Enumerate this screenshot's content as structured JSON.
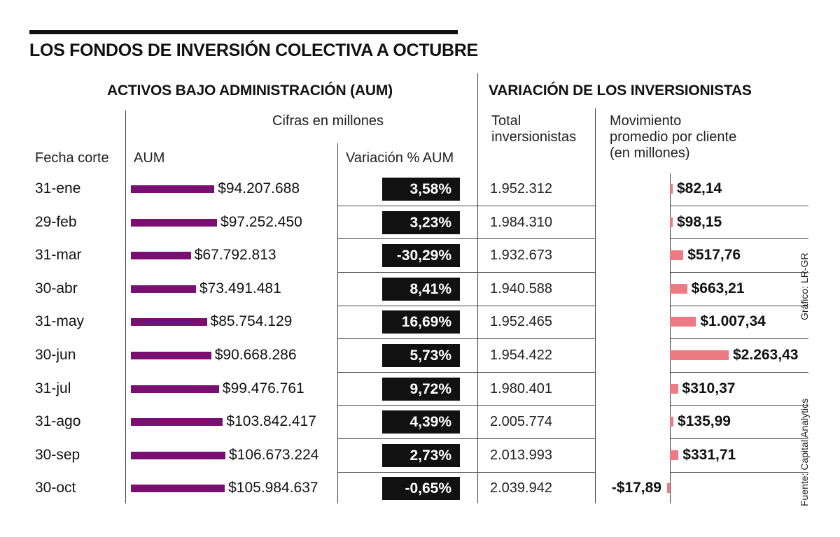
{
  "title": "LOS FONDOS DE INVERSIÓN COLECTIVA A OCTUBRE",
  "section_aum": "ACTIVOS BAJO ADMINISTRACIÓN (AUM)",
  "section_inv": "VARIACIÓN DE LOS INVERSIONISTAS",
  "headers": {
    "units": "Cifras en millones",
    "date": "Fecha corte",
    "aum": "AUM",
    "variation": "Variación % AUM",
    "total_line1": "Total",
    "total_line2": "inversionistas",
    "mov_line1": "Movimiento",
    "mov_line2": "promedio por cliente",
    "mov_line3": "(en millones)"
  },
  "credit": "Gráfico: LR-GR",
  "source": "Fuente: Capital Analytics",
  "colors": {
    "aum_bar": "#7a0f72",
    "mov_bar": "#ec7b84",
    "var_box": "#111111"
  },
  "chart_data": {
    "type": "table",
    "columns": [
      "Fecha corte",
      "AUM",
      "Variación % AUM",
      "Total inversionistas",
      "Movimiento promedio por cliente (en millones)"
    ],
    "rows": [
      {
        "date": "31-ene",
        "aum": 94207688,
        "aum_label": "$94.207.688",
        "var_label": "3,58%",
        "investors": "1.952.312",
        "mov": 82.14,
        "mov_label": "$82,14"
      },
      {
        "date": "29-feb",
        "aum": 97252450,
        "aum_label": "$97.252.450",
        "var_label": "3,23%",
        "investors": "1.984.310",
        "mov": 98.15,
        "mov_label": "$98,15"
      },
      {
        "date": "31-mar",
        "aum": 67792813,
        "aum_label": "$67.792.813",
        "var_label": "-30,29%",
        "investors": "1.932.673",
        "mov": 517.76,
        "mov_label": "$517,76"
      },
      {
        "date": "30-abr",
        "aum": 73491481,
        "aum_label": "$73.491.481",
        "var_label": "8,41%",
        "investors": "1.940.588",
        "mov": 663.21,
        "mov_label": "$663,21"
      },
      {
        "date": "31-may",
        "aum": 85754129,
        "aum_label": "$85.754.129",
        "var_label": "16,69%",
        "investors": "1.952.465",
        "mov": 1007.34,
        "mov_label": "$1.007,34"
      },
      {
        "date": "30-jun",
        "aum": 90668286,
        "aum_label": "$90.668.286",
        "var_label": "5,73%",
        "investors": "1.954.422",
        "mov": 2263.43,
        "mov_label": "$2.263,43"
      },
      {
        "date": "31-jul",
        "aum": 99476761,
        "aum_label": "$99.476.761",
        "var_label": "9,72%",
        "investors": "1.980.401",
        "mov": 310.37,
        "mov_label": "$310,37"
      },
      {
        "date": "31-ago",
        "aum": 103842417,
        "aum_label": "$103.842.417",
        "var_label": "4,39%",
        "investors": "2.005.774",
        "mov": 135.99,
        "mov_label": "$135,99"
      },
      {
        "date": "30-sep",
        "aum": 106673224,
        "aum_label": "$106.673.224",
        "var_label": "2,73%",
        "investors": "2.013.993",
        "mov": 331.71,
        "mov_label": "$331,71"
      },
      {
        "date": "30-oct",
        "aum": 105984637,
        "aum_label": "$105.984.637",
        "var_label": "-0,65%",
        "investors": "2.039.942",
        "mov": -17.89,
        "mov_label": "-$17,89"
      }
    ]
  }
}
